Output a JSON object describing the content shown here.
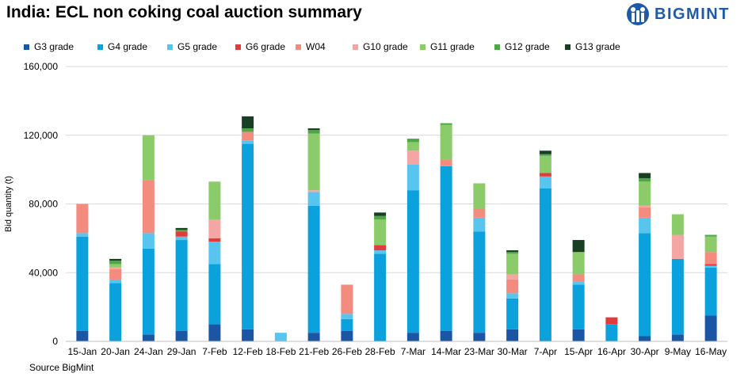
{
  "header": {
    "title": "India: ECL non coking coal auction summary",
    "brand": "BIGMINT",
    "source": "Source BigMint"
  },
  "legend": [
    {
      "name": "G3 grade",
      "color": "#1b56a4"
    },
    {
      "name": "G4 grade",
      "color": "#0aa1dd"
    },
    {
      "name": "G5 grade",
      "color": "#58c5ef"
    },
    {
      "name": "G6 grade",
      "color": "#e23b3b"
    },
    {
      "name": "W04",
      "color": "#f38b7e"
    },
    {
      "name": "G10 grade",
      "color": "#f4a5a4"
    },
    {
      "name": "G11 grade",
      "color": "#8ccb6a"
    },
    {
      "name": "G12 grade",
      "color": "#4ea646"
    },
    {
      "name": "G13 grade",
      "color": "#183f23"
    }
  ],
  "chart_data": {
    "type": "bar",
    "stacked": true,
    "title": "India: ECL non coking coal auction summary",
    "ylabel": "Bid quantity (t)",
    "xlabel": "",
    "ylim": [
      0,
      160000
    ],
    "yticks": [
      "0",
      "40,000",
      "80,000",
      "120,000",
      "160,000"
    ],
    "ytick_values": [
      0,
      40000,
      80000,
      120000,
      160000
    ],
    "grid": true,
    "legend_position": "top",
    "categories": [
      "15-Jan",
      "20-Jan",
      "24-Jan",
      "29-Jan",
      "7-Feb",
      "12-Feb",
      "18-Feb",
      "21-Feb",
      "26-Feb",
      "28-Feb",
      "7-Mar",
      "14-Mar",
      "23-Mar",
      "30-Mar",
      "7-Apr",
      "15-Apr",
      "16-Apr",
      "30-Apr",
      "9-May",
      "16-May"
    ],
    "series": [
      {
        "name": "G3 grade",
        "color": "#1b56a4",
        "values": [
          6000,
          0,
          4000,
          6000,
          10000,
          7000,
          0,
          5000,
          6000,
          0,
          5000,
          6000,
          5000,
          7000,
          0,
          7000,
          0,
          3000,
          4000,
          15000
        ]
      },
      {
        "name": "G4 grade",
        "color": "#0aa1dd",
        "values": [
          55000,
          34000,
          50000,
          53000,
          35000,
          108000,
          0,
          74000,
          7000,
          51000,
          83000,
          96000,
          59000,
          18000,
          89000,
          26000,
          10000,
          60000,
          44000,
          28000
        ]
      },
      {
        "name": "G5 grade",
        "color": "#58c5ef",
        "values": [
          2000,
          2000,
          9000,
          2000,
          13000,
          2000,
          5000,
          8000,
          3000,
          2000,
          15000,
          0,
          8000,
          3000,
          7000,
          2000,
          0,
          9000,
          0,
          1000
        ]
      },
      {
        "name": "G6 grade",
        "color": "#e23b3b",
        "values": [
          0,
          0,
          0,
          3000,
          2000,
          0,
          0,
          0,
          0,
          3000,
          0,
          0,
          0,
          0,
          2000,
          0,
          4000,
          0,
          0,
          1000
        ]
      },
      {
        "name": "W04",
        "color": "#f38b7e",
        "values": [
          17000,
          6000,
          31000,
          0,
          0,
          5000,
          0,
          0,
          17000,
          0,
          0,
          4000,
          5000,
          8000,
          0,
          4000,
          0,
          6000,
          0,
          7000
        ]
      },
      {
        "name": "G10 grade",
        "color": "#f4a5a4",
        "values": [
          0,
          1000,
          0,
          0,
          11000,
          0,
          0,
          1000,
          0,
          0,
          8000,
          0,
          0,
          3000,
          0,
          0,
          0,
          1000,
          14000,
          0
        ]
      },
      {
        "name": "G11 grade",
        "color": "#8ccb6a",
        "values": [
          0,
          2000,
          26000,
          0,
          22000,
          0,
          0,
          33000,
          0,
          15000,
          5000,
          20000,
          15000,
          12000,
          10000,
          13000,
          0,
          14000,
          12000,
          9000
        ]
      },
      {
        "name": "G12 grade",
        "color": "#4ea646",
        "values": [
          0,
          2000,
          0,
          1000,
          0,
          2000,
          0,
          2000,
          0,
          2000,
          2000,
          1000,
          0,
          1000,
          1000,
          0,
          0,
          2000,
          0,
          1000
        ]
      },
      {
        "name": "G13 grade",
        "color": "#183f23",
        "values": [
          0,
          1000,
          0,
          1000,
          0,
          7000,
          0,
          1000,
          0,
          2000,
          0,
          0,
          0,
          1000,
          2000,
          7000,
          0,
          3000,
          0,
          0
        ]
      }
    ]
  }
}
